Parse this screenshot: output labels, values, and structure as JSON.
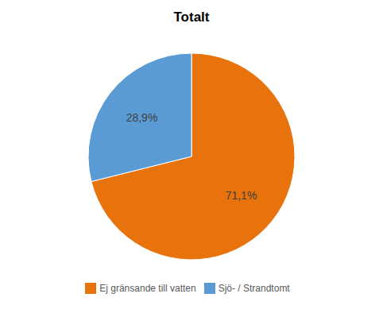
{
  "chart_data": {
    "type": "pie",
    "title": "Totalt",
    "categories": [
      "Ej gränsande till vatten",
      "Sjö- / Strandtomt"
    ],
    "values": [
      71.1,
      28.9
    ],
    "value_labels": [
      "71,1%",
      "28,9%"
    ],
    "colors": [
      "#E8720C",
      "#5B9BD5"
    ],
    "data_labels": true,
    "legend": "bottom"
  }
}
